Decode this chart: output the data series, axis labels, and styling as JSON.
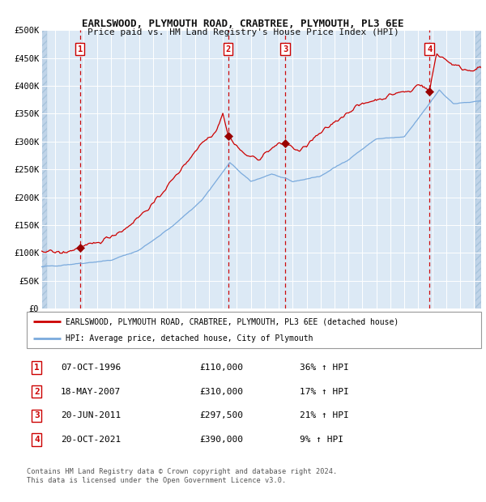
{
  "title": "EARLSWOOD, PLYMOUTH ROAD, CRABTREE, PLYMOUTH, PL3 6EE",
  "subtitle": "Price paid vs. HM Land Registry's House Price Index (HPI)",
  "legend_line1": "EARLSWOOD, PLYMOUTH ROAD, CRABTREE, PLYMOUTH, PL3 6EE (detached house)",
  "legend_line2": "HPI: Average price, detached house, City of Plymouth",
  "footer1": "Contains HM Land Registry data © Crown copyright and database right 2024.",
  "footer2": "This data is licensed under the Open Government Licence v3.0.",
  "transactions": [
    {
      "num": 1,
      "date": "07-OCT-1996",
      "price": 110000,
      "hpi_pct": "36%",
      "direction": "↑",
      "year": 1996.77
    },
    {
      "num": 2,
      "date": "18-MAY-2007",
      "price": 310000,
      "hpi_pct": "17%",
      "direction": "↑",
      "year": 2007.38
    },
    {
      "num": 3,
      "date": "20-JUN-2011",
      "price": 297500,
      "hpi_pct": "21%",
      "direction": "↑",
      "year": 2011.47
    },
    {
      "num": 4,
      "date": "20-OCT-2021",
      "price": 390000,
      "hpi_pct": "9%",
      "direction": "↑",
      "year": 2021.8
    }
  ],
  "xlim": [
    1994.0,
    2025.5
  ],
  "ylim": [
    0,
    500000
  ],
  "yticks": [
    0,
    50000,
    100000,
    150000,
    200000,
    250000,
    300000,
    350000,
    400000,
    450000,
    500000
  ],
  "ytick_labels": [
    "£0",
    "£50K",
    "£100K",
    "£150K",
    "£200K",
    "£250K",
    "£300K",
    "£350K",
    "£400K",
    "£450K",
    "£500K"
  ],
  "xticks": [
    1994,
    1995,
    1996,
    1997,
    1998,
    1999,
    2000,
    2001,
    2002,
    2003,
    2004,
    2005,
    2006,
    2007,
    2008,
    2009,
    2010,
    2011,
    2012,
    2013,
    2014,
    2015,
    2016,
    2017,
    2018,
    2019,
    2020,
    2021,
    2022,
    2023,
    2024,
    2025
  ],
  "hpi_color": "#7aaadd",
  "price_color": "#cc0000",
  "bg_color": "#dce9f5",
  "hatch_color": "#c0d4e8",
  "grid_color": "#ffffff",
  "vline_color": "#cc0000",
  "marker_color": "#990000",
  "hpi_anchors_years": [
    1994.0,
    1997.0,
    1999.0,
    2001.0,
    2003.5,
    2005.5,
    2007.5,
    2009.0,
    2010.5,
    2012.0,
    2014.0,
    2016.0,
    2018.0,
    2020.0,
    2021.5,
    2022.5,
    2023.5,
    2025.5
  ],
  "hpi_anchors_vals": [
    75000,
    82000,
    87000,
    105000,
    150000,
    195000,
    262000,
    228000,
    242000,
    228000,
    238000,
    268000,
    305000,
    308000,
    358000,
    393000,
    368000,
    372000
  ],
  "price_anchors_years": [
    1994.0,
    1995.5,
    1996.5,
    1996.77,
    1998.0,
    2000.0,
    2002.0,
    2004.0,
    2005.5,
    2006.5,
    2007.0,
    2007.38,
    2008.5,
    2009.5,
    2010.5,
    2011.0,
    2011.47,
    2012.5,
    2013.5,
    2015.0,
    2016.5,
    2017.5,
    2018.5,
    2019.5,
    2020.5,
    2021.0,
    2021.8,
    2022.3,
    2022.8,
    2023.5,
    2024.5,
    2025.5
  ],
  "price_anchors_vals": [
    105000,
    100000,
    107000,
    110000,
    118000,
    143000,
    188000,
    250000,
    298000,
    318000,
    352000,
    310000,
    278000,
    268000,
    288000,
    295000,
    297500,
    282000,
    305000,
    335000,
    362000,
    372000,
    378000,
    388000,
    390000,
    405000,
    390000,
    458000,
    450000,
    438000,
    428000,
    432000
  ]
}
